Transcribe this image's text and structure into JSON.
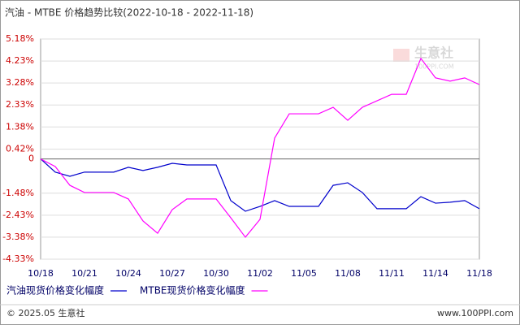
{
  "chart_data": {
    "type": "line",
    "title": "汽油 - MTBE 价格趋势比较(2022-10-18 - 2022-11-18)",
    "categories": [
      "10/18",
      null,
      null,
      "10/21",
      null,
      null,
      "10/24",
      null,
      null,
      "10/27",
      null,
      null,
      "10/30",
      null,
      null,
      "11/02",
      null,
      null,
      "11/05",
      null,
      null,
      "11/08",
      null,
      null,
      "11/11",
      null,
      null,
      "11/14",
      null,
      null,
      "11/18"
    ],
    "series": [
      {
        "name": "汽油现货价格变化幅度",
        "color": "#0000cc",
        "values": [
          0,
          -0.57,
          -0.75,
          -0.57,
          -0.57,
          -0.57,
          -0.36,
          -0.5,
          -0.36,
          -0.19,
          -0.26,
          -0.26,
          -0.26,
          -1.8,
          -2.26,
          -2.05,
          -1.8,
          -2.05,
          -2.05,
          -2.05,
          -1.14,
          -1.03,
          -1.45,
          -2.15,
          -2.15,
          -2.15,
          -1.63,
          -1.91,
          -1.87,
          -1.8,
          -2.15
        ]
      },
      {
        "name": "MTBE现货价格变化幅度",
        "color": "#ff00ff",
        "values": [
          0,
          -0.33,
          -1.14,
          -1.45,
          -1.45,
          -1.45,
          -1.73,
          -2.68,
          -3.21,
          -2.19,
          -1.73,
          -1.73,
          -1.73,
          -2.54,
          -3.38,
          -2.61,
          0.9,
          1.95,
          1.95,
          1.95,
          2.23,
          1.67,
          2.23,
          2.51,
          2.79,
          2.79,
          4.34,
          3.5,
          3.36,
          3.5,
          3.21
        ]
      }
    ],
    "ylim": [
      -4.33,
      5.18
    ],
    "yticks": [
      {
        "value": 5.18,
        "label": "5.18%"
      },
      {
        "value": 4.23,
        "label": "4.23%"
      },
      {
        "value": 3.28,
        "label": "3.28%"
      },
      {
        "value": 2.33,
        "label": "2.33%"
      },
      {
        "value": 1.38,
        "label": "1.38%"
      },
      {
        "value": 0.42,
        "label": "0.42%"
      },
      0,
      {
        "value": -1.48,
        "label": "-1.48%"
      },
      {
        "value": -2.43,
        "label": "-2.43%"
      },
      {
        "value": -3.38,
        "label": "-3.38%"
      },
      {
        "value": -4.33,
        "label": "-4.33%"
      }
    ],
    "grid": true,
    "watermark": "生意社",
    "watermark_url": "100PPI.COM",
    "footer_left": "© 2025.05 生意社",
    "footer_right": "www.100PPI.com"
  }
}
